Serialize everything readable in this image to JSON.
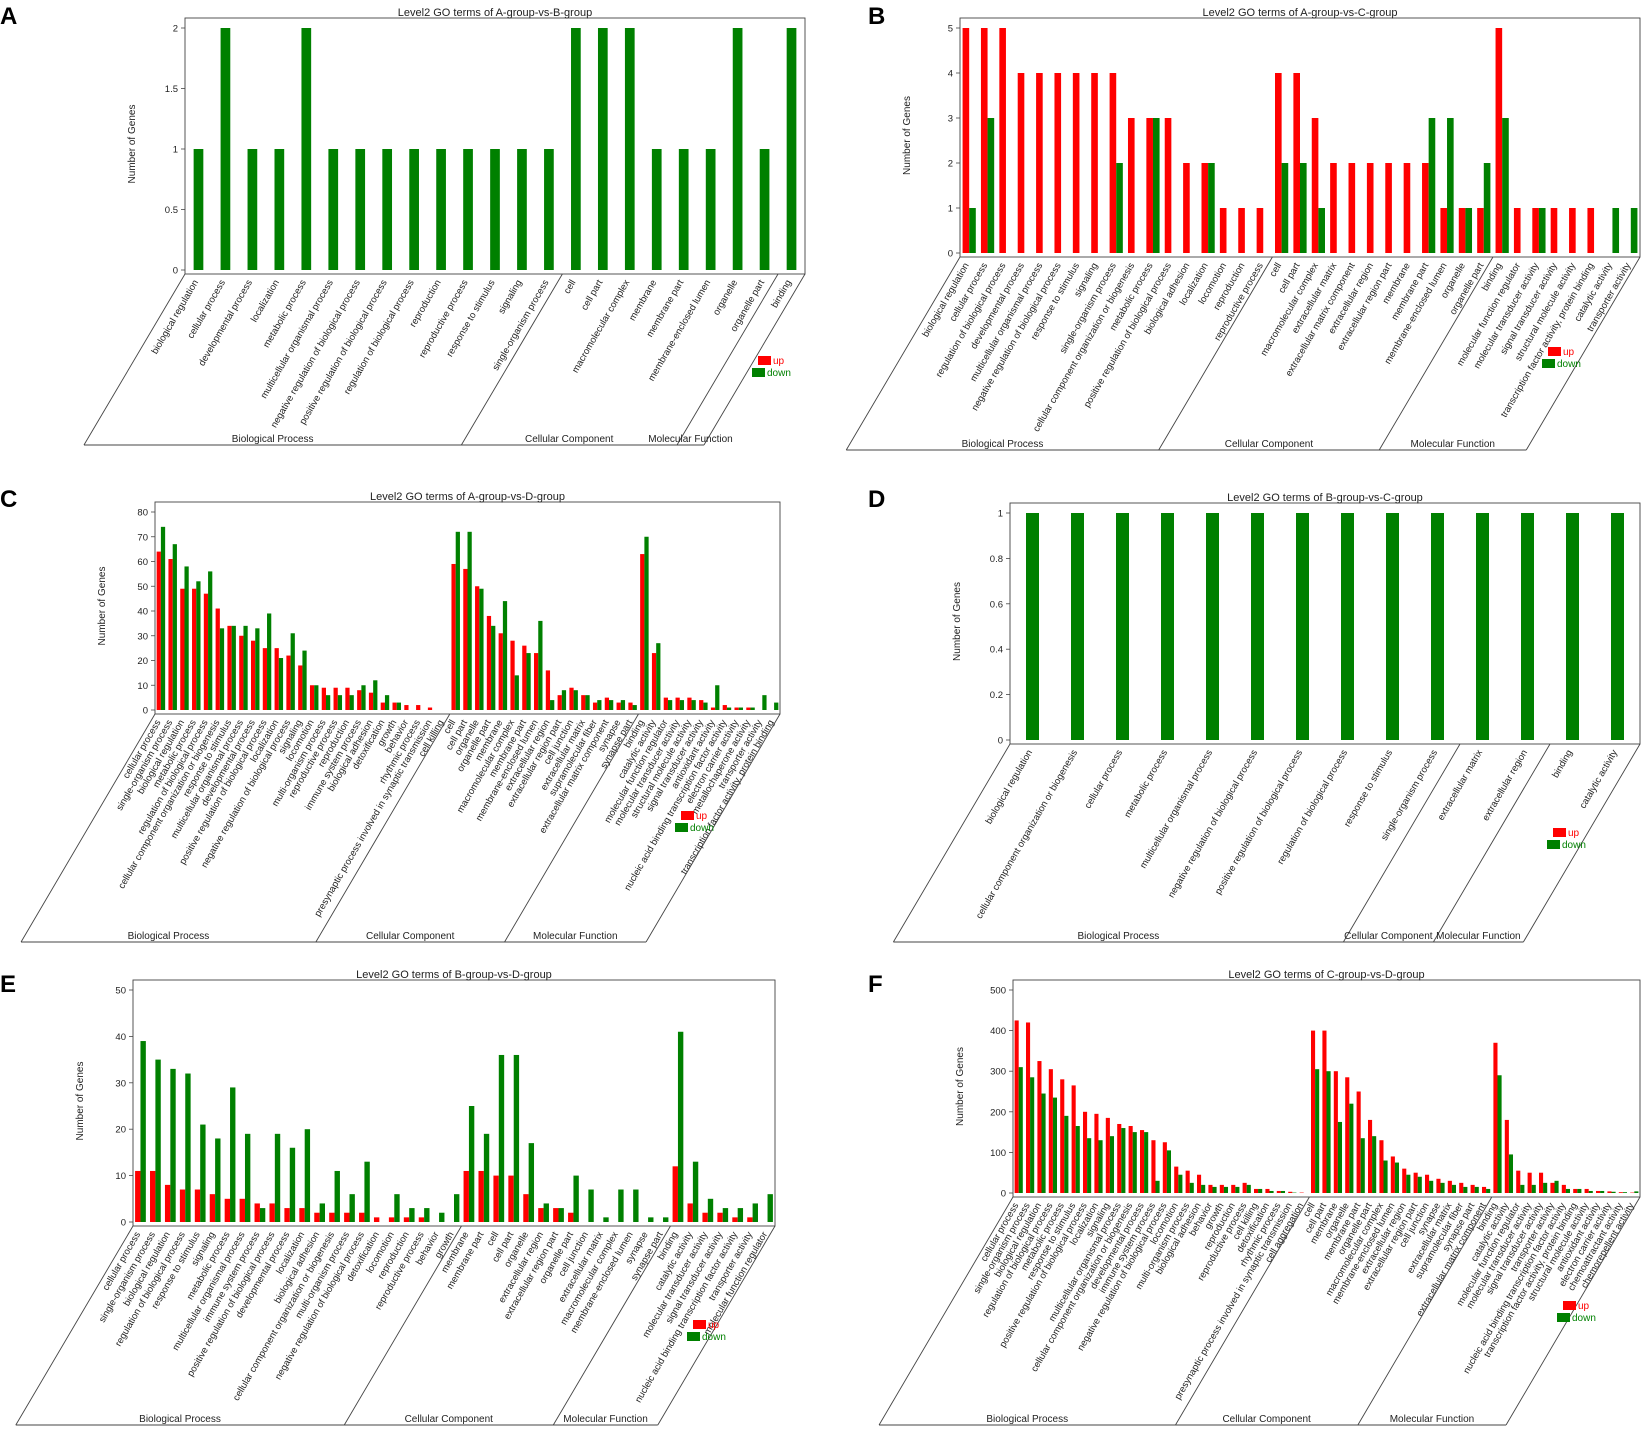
{
  "colors": {
    "up": "#ff0000",
    "down": "#008000"
  },
  "chart_data": [
    {
      "panel": "A",
      "type": "bar",
      "title": "Level2 GO terms of A-group-vs-B-group",
      "ylabel": "Number of Genes",
      "ylim": [
        0,
        2
      ],
      "yticks": [
        0,
        0.5,
        1,
        1.5,
        2
      ],
      "legend": [
        "up",
        "down"
      ],
      "categories": [
        "biological regulation",
        "cellular process",
        "developmental process",
        "localization",
        "metabolic process",
        "multicellular organismal process",
        "negative regulation of biological process",
        "positive regulation of biological process",
        "regulation of biological process",
        "reproduction",
        "reproductive process",
        "response to stimulus",
        "signaling",
        "single-organism process",
        "cell",
        "cell part",
        "macromolecular complex",
        "membrane",
        "membrane part",
        "membrane-enclosed lumen",
        "organelle",
        "organelle part",
        "binding"
      ],
      "groups": [
        {
          "name": "Biological Process",
          "count": 14
        },
        {
          "name": "Cellular Component",
          "count": 8
        },
        {
          "name": "Molecular Function",
          "count": 1
        }
      ],
      "series": [
        {
          "name": "up",
          "values": [
            0,
            0,
            0,
            0,
            0,
            0,
            0,
            0,
            0,
            0,
            0,
            0,
            0,
            0,
            0,
            0,
            0,
            0,
            0,
            0,
            0,
            0,
            0
          ]
        },
        {
          "name": "down",
          "values": [
            1,
            2,
            1,
            1,
            2,
            1,
            1,
            1,
            1,
            1,
            1,
            1,
            1,
            1,
            2,
            2,
            2,
            1,
            1,
            1,
            2,
            1,
            2
          ]
        }
      ]
    },
    {
      "panel": "B",
      "type": "bar",
      "title": "Level2 GO terms of A-group-vs-C-group",
      "ylabel": "Number of Genes",
      "ylim": [
        0,
        5
      ],
      "yticks": [
        0,
        1,
        2,
        3,
        4,
        5
      ],
      "legend": [
        "up",
        "down"
      ],
      "categories": [
        "biological regulation",
        "cellular process",
        "regulation of biological process",
        "developmental process",
        "multicellular organismal process",
        "negative regulation of biological process",
        "response to stimulus",
        "signaling",
        "single-organism process",
        "cellular component organization or biogenesis",
        "metabolic process",
        "positive regulation of biological process",
        "biological adhesion",
        "localization",
        "locomotion",
        "reproduction",
        "reproductive process",
        "cell",
        "cell part",
        "macromolecular complex",
        "extracellular matrix",
        "extracellular matrix component",
        "extracellular region",
        "extracellular region part",
        "membrane",
        "membrane part",
        "membrane-enclosed lumen",
        "organelle",
        "organelle part",
        "binding",
        "molecular function regulator",
        "molecular transducer activity",
        "signal transducer activity",
        "structural molecule activity",
        "transcription factor activity, protein binding",
        "catalytic activity",
        "transporter activity"
      ],
      "groups": [
        {
          "name": "Biological Process",
          "count": 17
        },
        {
          "name": "Cellular Component",
          "count": 12
        },
        {
          "name": "Molecular Function",
          "count": 8
        }
      ],
      "series": [
        {
          "name": "up",
          "values": [
            5,
            5,
            5,
            4,
            4,
            4,
            4,
            4,
            4,
            3,
            3,
            3,
            2,
            2,
            1,
            1,
            1,
            4,
            4,
            3,
            2,
            2,
            2,
            2,
            2,
            2,
            1,
            1,
            1,
            5,
            1,
            1,
            1,
            1,
            1,
            0,
            0
          ]
        },
        {
          "name": "down",
          "values": [
            1,
            3,
            0,
            0,
            0,
            0,
            0,
            0,
            2,
            0,
            3,
            0,
            0,
            2,
            0,
            0,
            0,
            2,
            2,
            1,
            0,
            0,
            0,
            0,
            0,
            3,
            3,
            1,
            2,
            3,
            0,
            1,
            0,
            0,
            0,
            1,
            1
          ]
        }
      ]
    },
    {
      "panel": "C",
      "type": "bar",
      "title": "Level2 GO terms of A-group-vs-D-group",
      "ylabel": "Number of Genes",
      "ylim": [
        0,
        80
      ],
      "yticks": [
        0,
        10,
        20,
        30,
        40,
        50,
        60,
        70,
        80
      ],
      "legend": [
        "up",
        "down"
      ],
      "categories": [
        "cellular process",
        "single-organism process",
        "biological regulation",
        "metabolic process",
        "regulation of biological process",
        "cellular component organization or biogenesis",
        "response to stimulus",
        "multicellular organismal process",
        "developmental process",
        "positive regulation of biological process",
        "localization",
        "negative regulation of biological process",
        "signaling",
        "locomotion",
        "multi-organism process",
        "reproductive process",
        "reproduction",
        "immune system process",
        "biological adhesion",
        "detoxification",
        "growth",
        "behavior",
        "rhythmic process",
        "presynaptic process involved in synaptic transmission",
        "cell killing",
        "cell",
        "cell part",
        "organelle",
        "organelle part",
        "membrane",
        "macromolecular complex",
        "membrane part",
        "membrane-enclosed lumen",
        "extracellular region",
        "extracellular region part",
        "cell junction",
        "extracellular matrix",
        "supramolecular fiber",
        "extracellular matrix component",
        "synapse",
        "synapse part",
        "binding",
        "catalytic activity",
        "molecular function regulator",
        "molecular transducer activity",
        "structural molecule activity",
        "signal transducer activity",
        "antioxidant activity",
        "nucleic acid binding transcription factor activity",
        "electron carrier activity",
        "metallochaperone activity",
        "transporter activity",
        "transcription factor activity, protein binding"
      ],
      "groups": [
        {
          "name": "Biological Process",
          "count": 25
        },
        {
          "name": "Cellular Component",
          "count": 16
        },
        {
          "name": "Molecular Function",
          "count": 12
        }
      ],
      "series": [
        {
          "name": "up",
          "values": [
            64,
            61,
            49,
            49,
            47,
            41,
            34,
            30,
            28,
            25,
            25,
            22,
            18,
            10,
            9,
            9,
            9,
            8,
            7,
            3,
            3,
            2,
            2,
            1,
            0,
            59,
            57,
            50,
            38,
            31,
            28,
            26,
            23,
            16,
            6,
            9,
            6,
            3,
            5,
            3,
            3,
            63,
            23,
            5,
            5,
            5,
            4,
            1,
            2,
            1,
            1,
            0,
            0
          ]
        },
        {
          "name": "down",
          "values": [
            74,
            67,
            58,
            52,
            56,
            33,
            34,
            34,
            33,
            39,
            21,
            31,
            24,
            10,
            6,
            6,
            6,
            10,
            12,
            6,
            3,
            0,
            0,
            0,
            0,
            72,
            72,
            49,
            34,
            44,
            14,
            23,
            36,
            4,
            8,
            8,
            6,
            4,
            4,
            4,
            2,
            70,
            27,
            4,
            4,
            4,
            3,
            10,
            1,
            1,
            1,
            6,
            3
          ]
        }
      ]
    },
    {
      "panel": "D",
      "type": "bar",
      "title": "Level2 GO terms of B-group-vs-C-group",
      "ylabel": "Number of Genes",
      "ylim": [
        0,
        1
      ],
      "yticks": [
        0,
        0.2,
        0.4,
        0.6,
        0.8,
        1
      ],
      "legend": [
        "up",
        "down"
      ],
      "categories": [
        "biological regulation",
        "cellular component organization or biogenesis",
        "cellular process",
        "metabolic process",
        "multicellular organismal process",
        "negative regulation of biological process",
        "positive regulation of biological process",
        "regulation of biological process",
        "response to stimulus",
        "single-organism process",
        "extracellular matrix",
        "extracellular region",
        "binding",
        "catalytic activity"
      ],
      "groups": [
        {
          "name": "Biological Process",
          "count": 10
        },
        {
          "name": "Cellular Component",
          "count": 2
        },
        {
          "name": "Molecular Function",
          "count": 2
        }
      ],
      "series": [
        {
          "name": "up",
          "values": [
            0,
            0,
            0,
            0,
            0,
            0,
            0,
            0,
            0,
            0,
            0,
            0,
            0,
            0
          ]
        },
        {
          "name": "down",
          "values": [
            1,
            1,
            1,
            1,
            1,
            1,
            1,
            1,
            1,
            1,
            1,
            1,
            1,
            1
          ]
        }
      ]
    },
    {
      "panel": "E",
      "type": "bar",
      "title": "Level2 GO terms of B-group-vs-D-group",
      "ylabel": "Number of Genes",
      "ylim": [
        0,
        50
      ],
      "yticks": [
        0,
        10,
        20,
        30,
        40,
        50
      ],
      "legend": [
        "up",
        "down"
      ],
      "categories": [
        "cellular process",
        "single-organism process",
        "biological regulation",
        "regulation of biological process",
        "response to stimulus",
        "signaling",
        "metabolic process",
        "multicellular organismal process",
        "immune system process",
        "positive regulation of biological process",
        "developmental process",
        "localization",
        "biological adhesion",
        "cellular component organization or biogenesis",
        "multi-organism process",
        "negative regulation of biological process",
        "detoxification",
        "locomotion",
        "reproduction",
        "reproductive process",
        "behavior",
        "growth",
        "membrane",
        "membrane part",
        "cell",
        "cell part",
        "organelle",
        "extracellular region",
        "extracellular region part",
        "organelle part",
        "cell junction",
        "extracellular matrix",
        "macromolecular complex",
        "membrane-enclosed lumen",
        "synapse",
        "synapse part",
        "binding",
        "catalytic activity",
        "molecular transducer activity",
        "signal transducer activity",
        "nucleic acid binding transcription factor activity",
        "transporter activity",
        "molecular function regulator"
      ],
      "groups": [
        {
          "name": "Biological Process",
          "count": 22
        },
        {
          "name": "Cellular Component",
          "count": 14
        },
        {
          "name": "Molecular Function",
          "count": 7
        }
      ],
      "series": [
        {
          "name": "up",
          "values": [
            11,
            11,
            8,
            7,
            7,
            6,
            5,
            5,
            4,
            4,
            3,
            3,
            2,
            2,
            2,
            2,
            1,
            1,
            1,
            1,
            0,
            0,
            11,
            11,
            10,
            10,
            6,
            3,
            3,
            2,
            0,
            0,
            0,
            0,
            0,
            0,
            12,
            4,
            2,
            2,
            1,
            1,
            0
          ]
        },
        {
          "name": "down",
          "values": [
            39,
            35,
            33,
            32,
            21,
            18,
            29,
            19,
            3,
            19,
            16,
            20,
            4,
            11,
            6,
            13,
            0,
            6,
            3,
            3,
            2,
            6,
            25,
            19,
            36,
            36,
            17,
            4,
            3,
            10,
            7,
            1,
            7,
            7,
            1,
            1,
            41,
            13,
            5,
            3,
            3,
            4,
            6
          ]
        }
      ]
    },
    {
      "panel": "F",
      "type": "bar",
      "title": "Level2 GO terms of C-group-vs-D-group",
      "ylabel": "Number of Genes",
      "ylim": [
        0,
        500
      ],
      "yticks": [
        0,
        100,
        200,
        300,
        400,
        500
      ],
      "legend": [
        "up",
        "down"
      ],
      "categories": [
        "cellular process",
        "single-organism process",
        "biological regulation",
        "regulation of biological process",
        "metabolic process",
        "response to stimulus",
        "positive regulation of biological process",
        "localization",
        "signaling",
        "multicellular organismal process",
        "cellular component organization or biogenesis",
        "developmental process",
        "immune system process",
        "negative regulation of biological process",
        "locomotion",
        "multi-organism process",
        "biological adhesion",
        "behavior",
        "growth",
        "reproduction",
        "reproductive process",
        "cell killing",
        "detoxification",
        "rhythmic process",
        "presynaptic process involved in synaptic transmission",
        "cell aggregation",
        "cell",
        "cell part",
        "membrane",
        "organelle",
        "membrane part",
        "organelle part",
        "macromolecular complex",
        "membrane-enclosed lumen",
        "extracellular region",
        "extracellular region part",
        "cell junction",
        "synapse",
        "extracellular matrix",
        "supramolecular fiber",
        "synapse part",
        "extracellular matrix component",
        "binding",
        "catalytic activity",
        "molecular function regulator",
        "molecular transducer activity",
        "signal transducer activity",
        "transporter activity",
        "nucleic acid binding transcription factor activity",
        "transcription factor activity, protein binding",
        "structural molecule activity",
        "antioxidant activity",
        "electron carrier activity",
        "chemoattractant activity",
        "chemorepellent activity"
      ],
      "groups": [
        {
          "name": "Biological Process",
          "count": 26
        },
        {
          "name": "Cellular Component",
          "count": 16
        },
        {
          "name": "Molecular Function",
          "count": 13
        }
      ],
      "series": [
        {
          "name": "up",
          "values": [
            425,
            420,
            325,
            305,
            280,
            265,
            200,
            195,
            185,
            170,
            165,
            155,
            130,
            125,
            65,
            55,
            45,
            20,
            20,
            20,
            25,
            10,
            10,
            5,
            3,
            1,
            400,
            400,
            300,
            285,
            250,
            180,
            130,
            90,
            60,
            50,
            45,
            35,
            30,
            25,
            20,
            15,
            370,
            180,
            55,
            50,
            50,
            25,
            20,
            10,
            10,
            5,
            4,
            2,
            1
          ]
        },
        {
          "name": "down",
          "values": [
            310,
            285,
            245,
            235,
            190,
            165,
            135,
            130,
            140,
            160,
            150,
            150,
            30,
            105,
            45,
            25,
            20,
            15,
            15,
            15,
            20,
            10,
            5,
            5,
            1,
            0,
            305,
            300,
            175,
            220,
            135,
            140,
            80,
            75,
            45,
            40,
            30,
            25,
            20,
            15,
            15,
            10,
            290,
            95,
            20,
            20,
            25,
            30,
            10,
            10,
            5,
            5,
            3,
            2,
            4
          ]
        }
      ]
    }
  ]
}
